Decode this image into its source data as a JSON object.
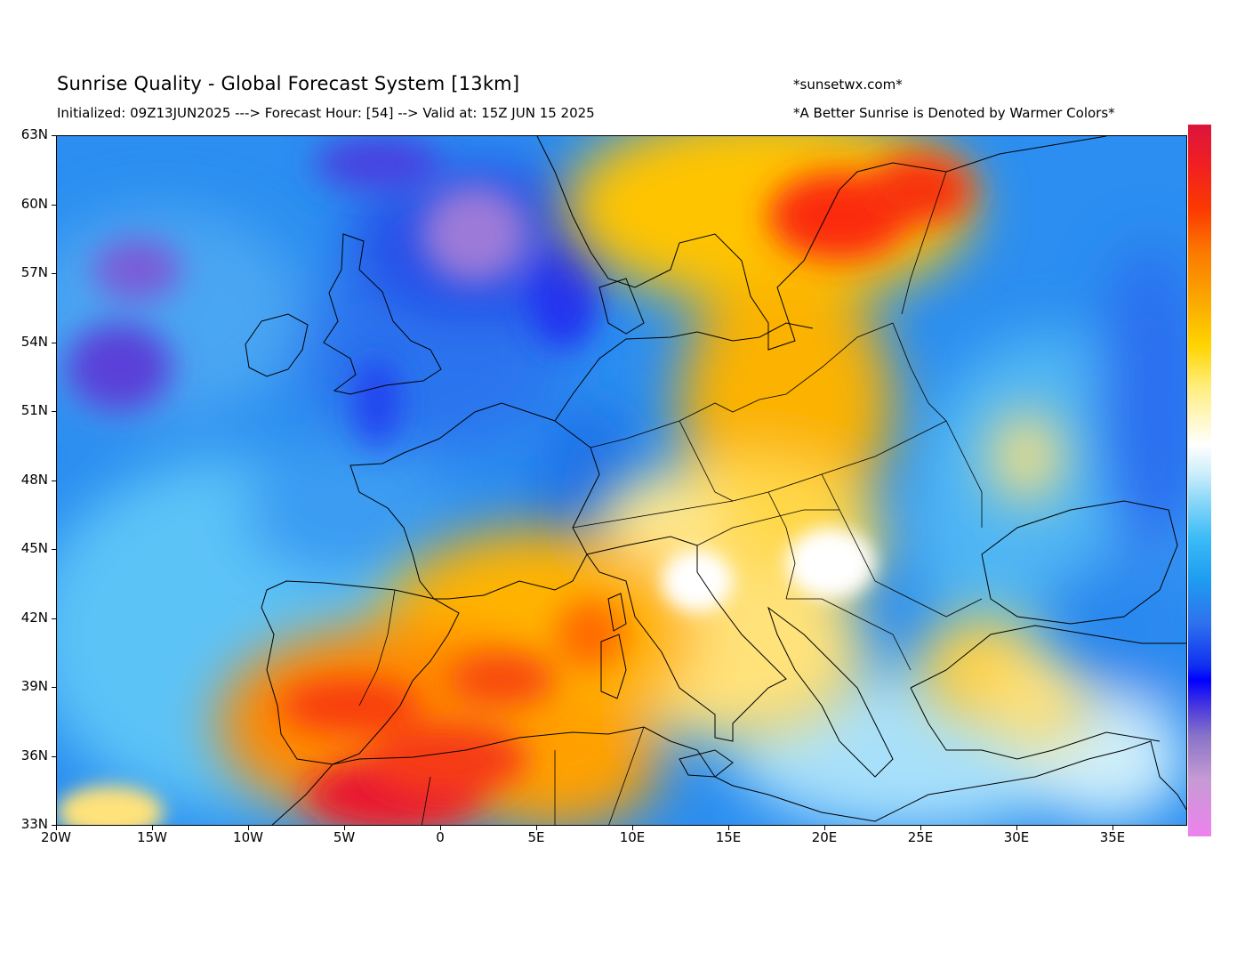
{
  "header": {
    "title": "Sunrise Quality - Global Forecast System [13km]",
    "subtitle": "Initialized: 09Z13JUN2025 ---> Forecast Hour: [54] --> Valid at: 15Z JUN 15 2025",
    "site": "*sunsetwx.com*",
    "note": "*A Better Sunrise is Denoted by Warmer Colors*"
  },
  "map": {
    "lat_labels": [
      "63N",
      "60N",
      "57N",
      "54N",
      "51N",
      "48N",
      "45N",
      "42N",
      "39N",
      "36N",
      "33N"
    ],
    "lon_labels": [
      "20W",
      "15W",
      "10W",
      "5W",
      "0",
      "5E",
      "10E",
      "15E",
      "20E",
      "25E",
      "30E",
      "35E"
    ],
    "extent": {
      "lon_min": -20,
      "lon_max": 39,
      "lat_min": 33,
      "lat_max": 63
    }
  },
  "colorbar": {
    "colors": [
      "#dc143c",
      "#f22020",
      "#fb3a00",
      "#fb7a00",
      "#fbaa00",
      "#ffd400",
      "#ffee80",
      "#ffffff",
      "#88d6f8",
      "#3cbcf7",
      "#1e9cf0",
      "#2e72ee",
      "#0000ff",
      "#8a74c8",
      "#ee82ee"
    ]
  }
}
